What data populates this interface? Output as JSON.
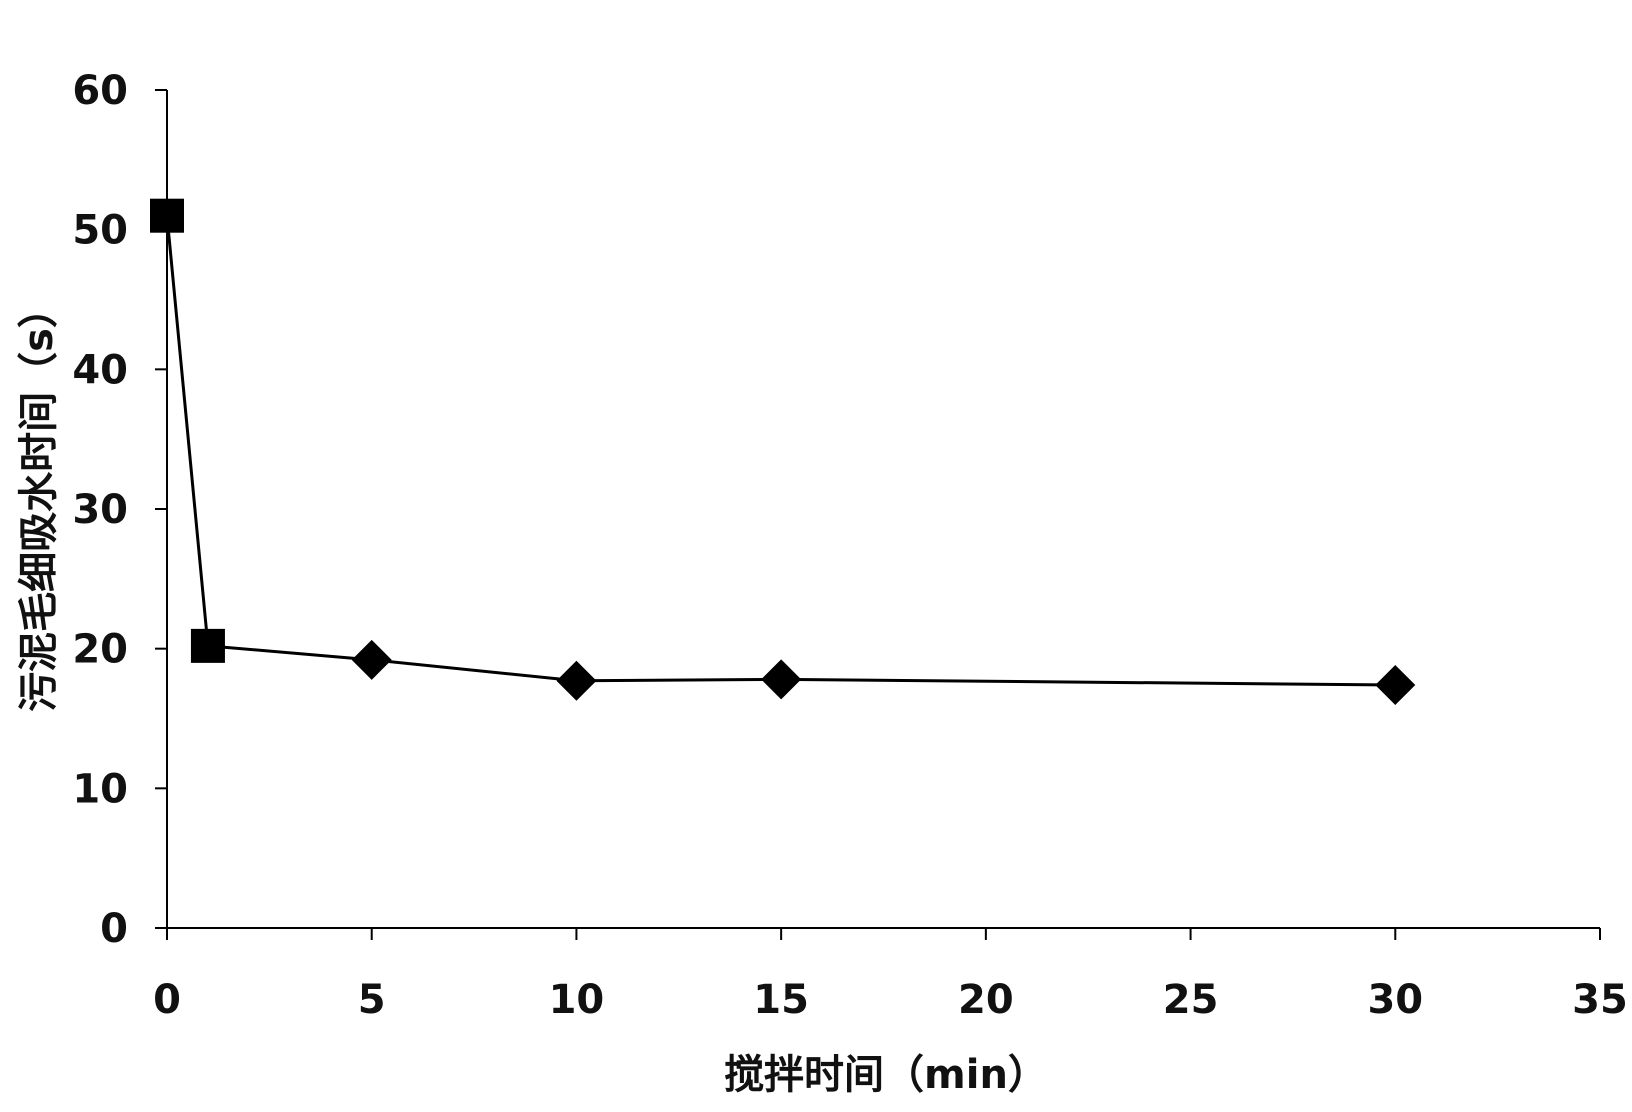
{
  "chart_data": {
    "type": "line",
    "title": "",
    "xlabel": "搅拌时间（min）",
    "ylabel": "污泥毛细吸水时间（s）",
    "xlim": [
      0,
      35
    ],
    "ylim": [
      0,
      60
    ],
    "x_ticks": [
      0,
      5,
      10,
      15,
      20,
      25,
      30,
      35
    ],
    "y_ticks": [
      0,
      10,
      20,
      30,
      40,
      50,
      60
    ],
    "grid": false,
    "legend": "none",
    "line_color": "#000000",
    "series": [
      {
        "points": [
          {
            "x": 0,
            "y": 51,
            "marker": "square"
          },
          {
            "x": 1,
            "y": 20.2,
            "marker": "square"
          },
          {
            "x": 5,
            "y": 19.2,
            "marker": "diamond"
          },
          {
            "x": 10,
            "y": 17.7,
            "marker": "diamond"
          },
          {
            "x": 15,
            "y": 17.8,
            "marker": "diamond"
          },
          {
            "x": 30,
            "y": 17.4,
            "marker": "diamond"
          }
        ]
      }
    ]
  }
}
